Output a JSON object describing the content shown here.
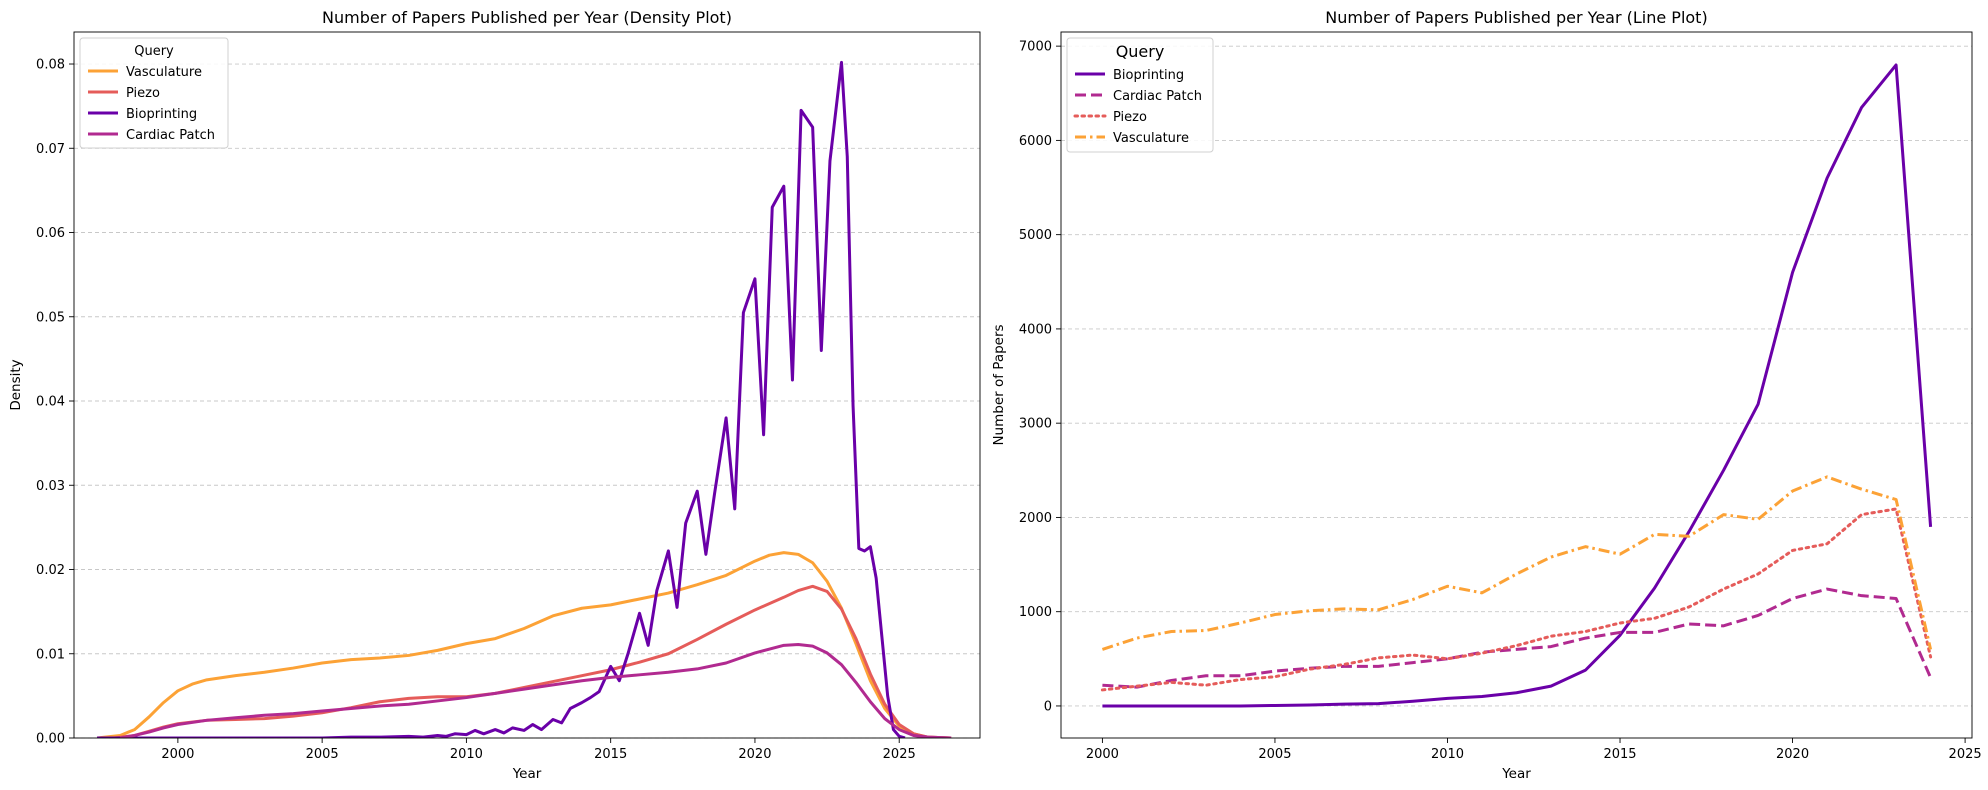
{
  "chart_data": [
    {
      "type": "line",
      "title": "Number of Papers Published per Year (Density Plot)",
      "xlabel": "Year",
      "ylabel": "Density",
      "xlim": [
        1996.4,
        2027.8
      ],
      "ylim": [
        0,
        0.0838
      ],
      "xticks": [
        2000,
        2005,
        2010,
        2015,
        2020,
        2025
      ],
      "yticks": [
        0,
        0.01,
        0.02,
        0.03,
        0.04,
        0.05,
        0.06,
        0.07,
        0.08
      ],
      "ytick_labels": [
        "0.00",
        "0.01",
        "0.02",
        "0.03",
        "0.04",
        "0.05",
        "0.06",
        "0.07",
        "0.08"
      ],
      "grid": "y-dashed",
      "legend": {
        "title": "Query",
        "position": "top-left"
      },
      "series": [
        {
          "name": "Vasculature",
          "color": "#FCA236",
          "style": "solid",
          "x": [
            1997.2,
            1998.0,
            1998.5,
            1999.0,
            1999.5,
            2000.0,
            2000.5,
            2001.0,
            2002.0,
            2003.0,
            2004.0,
            2005.0,
            2006.0,
            2007.0,
            2008.0,
            2009.0,
            2010.0,
            2011.0,
            2012.0,
            2013.0,
            2014.0,
            2015.0,
            2016.0,
            2017.0,
            2018.0,
            2019.0,
            2020.0,
            2020.5,
            2021.0,
            2021.5,
            2022.0,
            2022.5,
            2023.0,
            2023.5,
            2024.0,
            2024.5,
            2025.0,
            2025.5,
            2026.0,
            2026.8
          ],
          "values": [
            0.0,
            0.0003,
            0.001,
            0.0025,
            0.0042,
            0.0056,
            0.0064,
            0.0069,
            0.0074,
            0.0078,
            0.0083,
            0.0089,
            0.0093,
            0.0095,
            0.0098,
            0.0104,
            0.0112,
            0.0118,
            0.013,
            0.0145,
            0.0154,
            0.0158,
            0.0165,
            0.0172,
            0.0182,
            0.0193,
            0.021,
            0.0217,
            0.022,
            0.0218,
            0.0208,
            0.0186,
            0.0154,
            0.0112,
            0.0068,
            0.0035,
            0.0014,
            0.0005,
            0.0001,
            0.0
          ]
        },
        {
          "name": "Piezo",
          "color": "#E55C5A",
          "style": "solid",
          "x": [
            1997.8,
            1998.5,
            1999.0,
            1999.5,
            2000.0,
            2001.0,
            2002.0,
            2003.0,
            2004.0,
            2005.0,
            2006.0,
            2007.0,
            2008.0,
            2009.0,
            2010.0,
            2011.0,
            2012.0,
            2013.0,
            2014.0,
            2015.0,
            2016.0,
            2017.0,
            2018.0,
            2019.0,
            2020.0,
            2021.0,
            2021.5,
            2022.0,
            2022.5,
            2023.0,
            2023.5,
            2024.0,
            2024.5,
            2025.0,
            2025.5,
            2026.0,
            2026.8
          ],
          "values": [
            0.0,
            0.0003,
            0.0008,
            0.0013,
            0.0017,
            0.0021,
            0.0022,
            0.0023,
            0.0026,
            0.003,
            0.0036,
            0.0043,
            0.0047,
            0.0049,
            0.0049,
            0.0053,
            0.006,
            0.0067,
            0.0074,
            0.0081,
            0.009,
            0.01,
            0.0117,
            0.0135,
            0.0152,
            0.0167,
            0.0175,
            0.018,
            0.0174,
            0.0153,
            0.0118,
            0.0076,
            0.004,
            0.0016,
            0.0005,
            0.0001,
            0.0
          ]
        },
        {
          "name": "Bioprinting",
          "color": "#6A00A8",
          "style": "solid",
          "x": [
            1997.2,
            2000,
            2003,
            2005,
            2006,
            2007,
            2008,
            2008.5,
            2009,
            2009.3,
            2009.6,
            2010,
            2010.3,
            2010.6,
            2011,
            2011.3,
            2011.6,
            2012,
            2012.3,
            2012.6,
            2013,
            2013.3,
            2013.6,
            2014,
            2014.3,
            2014.6,
            2015,
            2015.3,
            2015.6,
            2016,
            2016.3,
            2016.6,
            2017,
            2017.3,
            2017.6,
            2018,
            2018.3,
            2018.6,
            2019,
            2019.3,
            2019.6,
            2020,
            2020.3,
            2020.6,
            2021,
            2021.3,
            2021.6,
            2022,
            2022.3,
            2022.6,
            2023,
            2023.2,
            2023.4,
            2023.6,
            2023.8,
            2024,
            2024.2,
            2024.4,
            2024.6,
            2024.8,
            2025.0,
            2025.2
          ],
          "values": [
            0.0,
            0.0,
            0.0,
            0.0,
            0.0001,
            0.0001,
            0.0002,
            0.0001,
            0.0003,
            0.0002,
            0.0005,
            0.0004,
            0.0009,
            0.0005,
            0.001,
            0.0006,
            0.0012,
            0.0009,
            0.0016,
            0.001,
            0.0022,
            0.0018,
            0.0035,
            0.0042,
            0.0048,
            0.0055,
            0.0085,
            0.0068,
            0.01,
            0.0148,
            0.011,
            0.0175,
            0.0222,
            0.0155,
            0.0255,
            0.0293,
            0.0218,
            0.029,
            0.038,
            0.0272,
            0.0505,
            0.0545,
            0.036,
            0.063,
            0.0655,
            0.0425,
            0.0745,
            0.0725,
            0.046,
            0.0685,
            0.0802,
            0.069,
            0.0395,
            0.0225,
            0.0222,
            0.0227,
            0.019,
            0.012,
            0.005,
            0.001,
            0.0002,
            0.0
          ]
        },
        {
          "name": "Cardiac Patch",
          "color": "#B12A90",
          "style": "solid",
          "x": [
            1998.0,
            1998.5,
            1999.0,
            1999.5,
            2000.0,
            2001.0,
            2002.0,
            2003.0,
            2004.0,
            2005.0,
            2006.0,
            2007.0,
            2008.0,
            2009.0,
            2010.0,
            2011.0,
            2012.0,
            2013.0,
            2014.0,
            2015.0,
            2016.0,
            2017.0,
            2018.0,
            2019.0,
            2020.0,
            2021.0,
            2021.5,
            2022.0,
            2022.5,
            2023.0,
            2023.5,
            2024.0,
            2024.5,
            2025.0,
            2025.5,
            2026.0,
            2026.8
          ],
          "values": [
            0.0,
            0.0003,
            0.0007,
            0.0012,
            0.0016,
            0.0021,
            0.0024,
            0.0027,
            0.0029,
            0.0032,
            0.0035,
            0.0038,
            0.004,
            0.0044,
            0.0048,
            0.0053,
            0.0058,
            0.0063,
            0.0068,
            0.0072,
            0.0075,
            0.0078,
            0.0082,
            0.0089,
            0.0101,
            0.011,
            0.0111,
            0.0109,
            0.0101,
            0.0087,
            0.0066,
            0.0043,
            0.0023,
            0.001,
            0.0003,
            0.0001,
            0.0
          ]
        }
      ]
    },
    {
      "type": "line",
      "title": "Number of Papers Published per Year (Line Plot)",
      "xlabel": "Year",
      "ylabel": "Number of Papers",
      "xlim": [
        1998.8,
        2025.2
      ],
      "ylim": [
        -340,
        7150
      ],
      "xticks": [
        2000,
        2005,
        2010,
        2015,
        2020,
        2025
      ],
      "yticks": [
        0,
        1000,
        2000,
        3000,
        4000,
        5000,
        6000,
        7000
      ],
      "ytick_labels": [
        "0",
        "1000",
        "2000",
        "3000",
        "4000",
        "5000",
        "6000",
        "7000"
      ],
      "grid": "y-dashed",
      "legend": {
        "title": "Query",
        "position": "top-left"
      },
      "series": [
        {
          "name": "Bioprinting",
          "color": "#6A00A8",
          "style": "solid",
          "x": [
            2000,
            2001,
            2002,
            2003,
            2004,
            2005,
            2006,
            2007,
            2008,
            2009,
            2010,
            2011,
            2012,
            2013,
            2014,
            2015,
            2016,
            2017,
            2018,
            2019,
            2020,
            2021,
            2022,
            2023,
            2024
          ],
          "values": [
            0,
            0,
            0,
            0,
            0,
            5,
            10,
            20,
            25,
            50,
            80,
            100,
            140,
            210,
            380,
            750,
            1250,
            1850,
            2500,
            3200,
            4600,
            5600,
            6350,
            6800,
            1900
          ]
        },
        {
          "name": "Cardiac Patch",
          "color": "#B12A90",
          "style": "dashed",
          "x": [
            2000,
            2001,
            2002,
            2003,
            2004,
            2005,
            2006,
            2007,
            2008,
            2009,
            2010,
            2011,
            2012,
            2013,
            2014,
            2015,
            2016,
            2017,
            2018,
            2019,
            2020,
            2021,
            2022,
            2023,
            2024
          ],
          "values": [
            220,
            200,
            270,
            320,
            320,
            370,
            400,
            420,
            420,
            460,
            500,
            570,
            600,
            630,
            720,
            780,
            780,
            870,
            850,
            960,
            1140,
            1240,
            1170,
            1140,
            300
          ]
        },
        {
          "name": "Piezo",
          "color": "#E55C5A",
          "style": "dotted",
          "x": [
            2000,
            2001,
            2002,
            2003,
            2004,
            2005,
            2006,
            2007,
            2008,
            2009,
            2010,
            2011,
            2012,
            2013,
            2014,
            2015,
            2016,
            2017,
            2018,
            2019,
            2020,
            2021,
            2022,
            2023,
            2024
          ],
          "values": [
            170,
            210,
            250,
            220,
            280,
            310,
            390,
            440,
            510,
            540,
            500,
            560,
            640,
            740,
            790,
            880,
            930,
            1050,
            1240,
            1400,
            1650,
            1720,
            2030,
            2090,
            520
          ]
        },
        {
          "name": "Vasculature",
          "color": "#FCA236",
          "style": "dashdot",
          "x": [
            2000,
            2001,
            2002,
            2003,
            2004,
            2005,
            2006,
            2007,
            2008,
            2009,
            2010,
            2011,
            2012,
            2013,
            2014,
            2015,
            2016,
            2017,
            2018,
            2019,
            2020,
            2021,
            2022,
            2023,
            2024
          ],
          "values": [
            600,
            720,
            790,
            800,
            880,
            970,
            1010,
            1030,
            1020,
            1130,
            1270,
            1200,
            1400,
            1580,
            1690,
            1610,
            1820,
            1800,
            2030,
            1980,
            2280,
            2430,
            2300,
            2190,
            600
          ]
        }
      ]
    }
  ]
}
